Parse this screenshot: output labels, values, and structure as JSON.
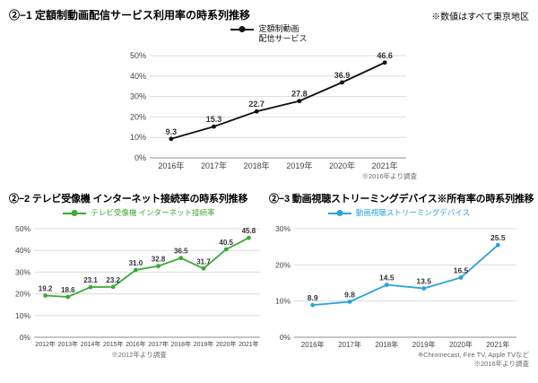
{
  "header_note": "※数値はすべて東京地区",
  "chart_data": [
    {
      "type": "line",
      "title": "②−1 定額制動画配信サービス利用率の時系列推移",
      "legend": "定額制動画\n配信サービス",
      "categories": [
        "2016年",
        "2017年",
        "2018年",
        "2019年",
        "2020年",
        "2021年"
      ],
      "values": [
        9.3,
        15.3,
        22.7,
        27.8,
        36.9,
        46.6
      ],
      "labels": [
        "9.3",
        "15.3",
        "22.7",
        "27.8",
        "36.9",
        "46.6"
      ],
      "ylim": [
        0,
        50
      ],
      "ytick": 10,
      "color": "#111111",
      "notes": [
        "※2016年より調査"
      ]
    },
    {
      "type": "line",
      "title": "②−2 テレビ受像機 インターネット接続率の時系列推移",
      "legend": "テレビ受像機 インターネット接続率",
      "categories": [
        "2012年",
        "2013年",
        "2014年",
        "2015年",
        "2016年",
        "2017年",
        "2018年",
        "2019年",
        "2020年",
        "2021年"
      ],
      "values": [
        19.2,
        18.6,
        23.1,
        23.2,
        31.0,
        32.8,
        36.5,
        31.7,
        40.5,
        45.8
      ],
      "labels": [
        "19.2",
        "18.6",
        "23.1",
        "23.2",
        "31.0",
        "32.8",
        "36.5",
        "31.7",
        "40.5",
        "45.8"
      ],
      "ylim": [
        0,
        50
      ],
      "ytick": 10,
      "color": "#3aaa35",
      "notes": [
        "※2012年より調査"
      ]
    },
    {
      "type": "line",
      "title": "②−3 動画視聴ストリーミングデバイス※所有率の時系列推移",
      "legend": "動画視聴ストリーミングデバイス",
      "categories": [
        "2016年",
        "2017年",
        "2018年",
        "2019年",
        "2020年",
        "2021年"
      ],
      "values": [
        8.9,
        9.8,
        14.5,
        13.5,
        16.5,
        25.5
      ],
      "labels": [
        "8.9",
        "9.8",
        "14.5",
        "13.5",
        "16.5",
        "25.5"
      ],
      "ylim": [
        0,
        30
      ],
      "ytick": 10,
      "color": "#29a3dc",
      "notes": [
        "※Chromecast, Fire TV, Apple TVなど",
        "※2016年より調査"
      ]
    }
  ]
}
